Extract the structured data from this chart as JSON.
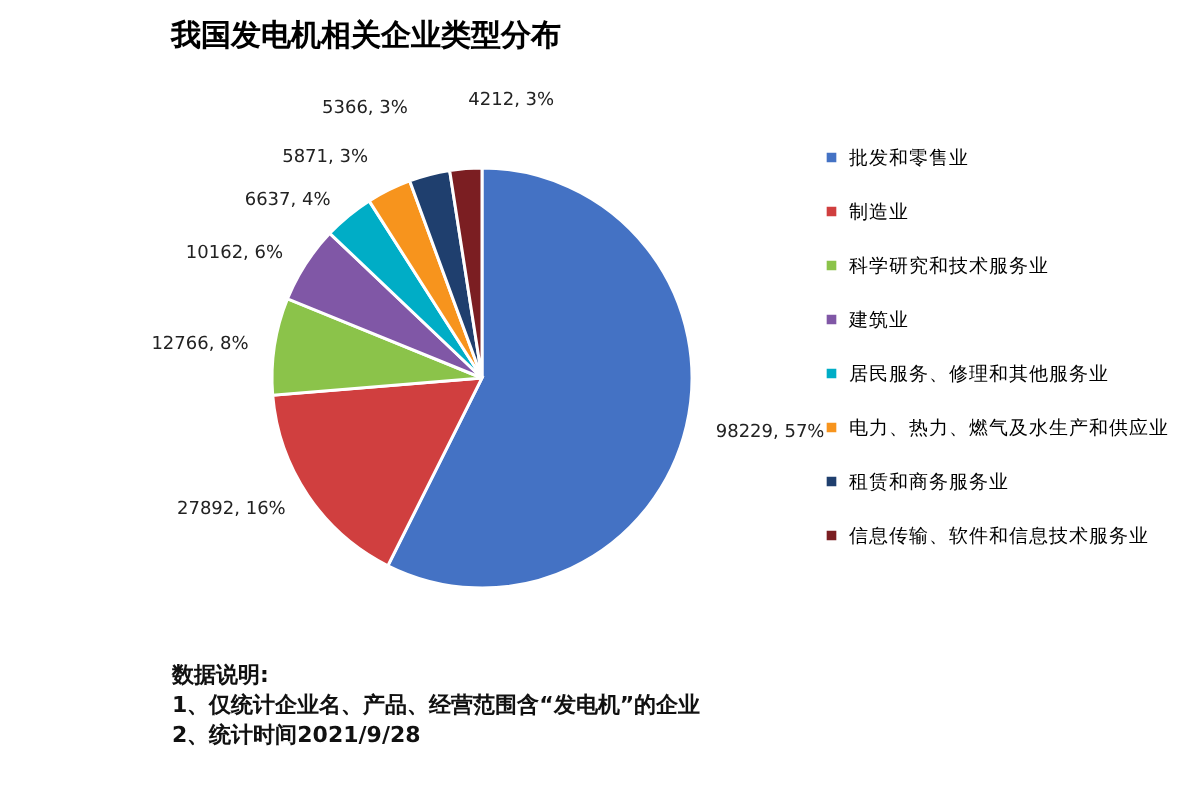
{
  "chart_data": {
    "type": "pie",
    "title": "我国发电机相关企业类型分布",
    "categories": [
      "批发和零售业",
      "制造业",
      "科学研究和技术服务业",
      "建筑业",
      "居民服务、修理和其他服务业",
      "电力、热力、燃气及水生产和供应业",
      "租赁和商务服务业",
      "信息传输、软件和信息技术服务业"
    ],
    "values": [
      98229,
      27892,
      12766,
      10162,
      6637,
      5871,
      5366,
      4212
    ],
    "value_labels": [
      "98229, 57%",
      "27892, 16%",
      "12766, 8%",
      "10162, 6%",
      "6637, 4%",
      "5871, 3%",
      "5366, 3%",
      "4212, 3%"
    ],
    "colors": [
      "#4472c4",
      "#d03f3f",
      "#8bc34a",
      "#8057a6",
      "#00adc6",
      "#f7941d",
      "#1f3f6e",
      "#7b1e22"
    ],
    "legend": "right",
    "annotations": [
      "数据说明:",
      "1、仅统计企业名、产品、经营范围含“发电机”的企业",
      "2、统计时间2021/9/28"
    ]
  }
}
